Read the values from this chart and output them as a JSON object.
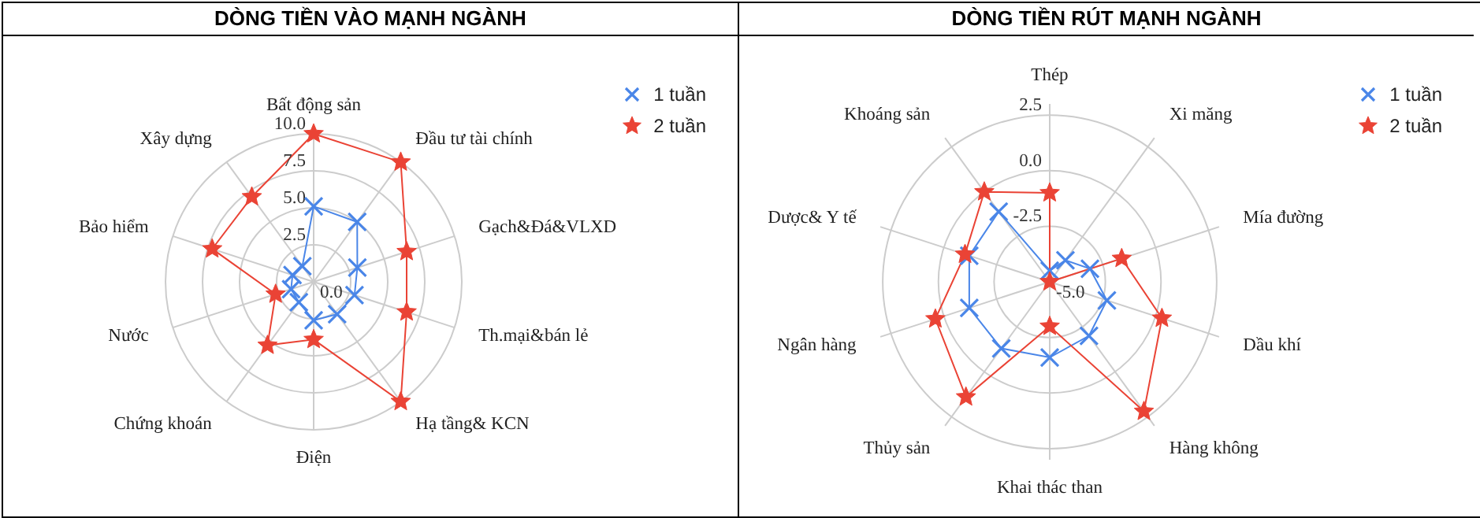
{
  "chart_data": [
    {
      "type": "radar",
      "title": "DÒNG TIỀN VÀO MẠNH NGÀNH",
      "categories": [
        "Bất động sản",
        "Đầu tư tài chính",
        "Gạch&Đá&VLXD",
        "Th.mại&bán lẻ",
        "Hạ tầng& KCN",
        "Điện",
        "Chứng khoán",
        "Nước",
        "Bảo hiểm",
        "Xây dựng"
      ],
      "series": [
        {
          "name": "1 tuần",
          "color": "#4a86e8",
          "marker": "cross",
          "values": [
            5.1,
            5.0,
            3.1,
            2.9,
            2.7,
            2.6,
            1.7,
            1.6,
            1.5,
            1.3
          ]
        },
        {
          "name": "2 tuần",
          "color": "#ea4335",
          "marker": "star",
          "values": [
            10.0,
            10.0,
            6.6,
            6.6,
            10.0,
            3.9,
            5.3,
            2.7,
            7.2,
            7.1
          ]
        }
      ],
      "ylim": [
        0,
        10
      ],
      "yticks": [
        {
          "value": 0,
          "label": "0.0"
        },
        {
          "value": 2.5,
          "label": "2.5"
        },
        {
          "value": 5,
          "label": "5.0"
        },
        {
          "value": 7.5,
          "label": "7.5"
        },
        {
          "value": 10,
          "label": "10.0"
        }
      ],
      "grid": true,
      "legend": "top right"
    },
    {
      "type": "radar",
      "title": "DÒNG TIỀN RÚT MẠNH NGÀNH",
      "categories": [
        "Thép",
        "Xi măng",
        "Mía đường",
        "Dầu khí",
        "Hàng không",
        "Khai thác than",
        "Thủy sản",
        "Ngân hàng",
        "Dược& Y tế",
        "Khoáng sản"
      ],
      "series": [
        {
          "name": "1 tuần",
          "color": "#4a86e8",
          "marker": "cross",
          "values": [
            -4.5,
            -3.8,
            -3.1,
            -2.3,
            -2.0,
            -1.6,
            -1.3,
            -1.2,
            -1.2,
            -1.1
          ]
        },
        {
          "name": "2 tuần",
          "color": "#ea4335",
          "marker": "star",
          "values": [
            -1.0,
            -5.0,
            -1.6,
            0.3,
            2.2,
            -3.0,
            1.4,
            0.4,
            -1.0,
            0.0
          ]
        }
      ],
      "ylim": [
        -5,
        2.5
      ],
      "yticks": [
        {
          "value": -5,
          "label": "-5.0"
        },
        {
          "value": -2.5,
          "label": "-2.5"
        },
        {
          "value": 0,
          "label": "0.0"
        },
        {
          "value": 2.5,
          "label": "2.5"
        }
      ],
      "grid": true,
      "legend": "top right"
    }
  ]
}
